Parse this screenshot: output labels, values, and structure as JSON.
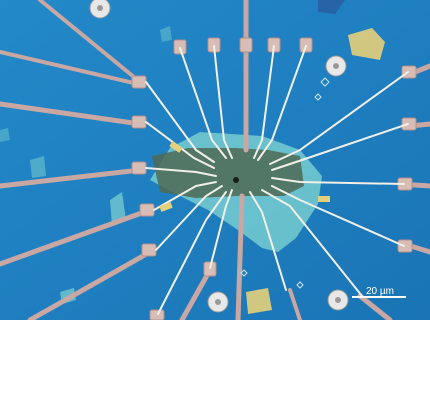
{
  "scale_bar": {
    "label": "20 µm"
  },
  "colors": {
    "substrate": "#1f7fc0",
    "substrate_light": "#2f94d0",
    "electrode": "#c9a7a3",
    "electrode_pad": "#d8bcb6",
    "electrode_thin": "#f0f0e8",
    "flake_teal": "#7fd3d2",
    "flake_dark": "#4f6a55",
    "flake_yellow": "#e4cf7a",
    "scale_bar": "#ffffff"
  },
  "icons": {
    "alignment_marker": "circle-cross-marker-icon",
    "small_marker": "diamond-marker-icon"
  }
}
